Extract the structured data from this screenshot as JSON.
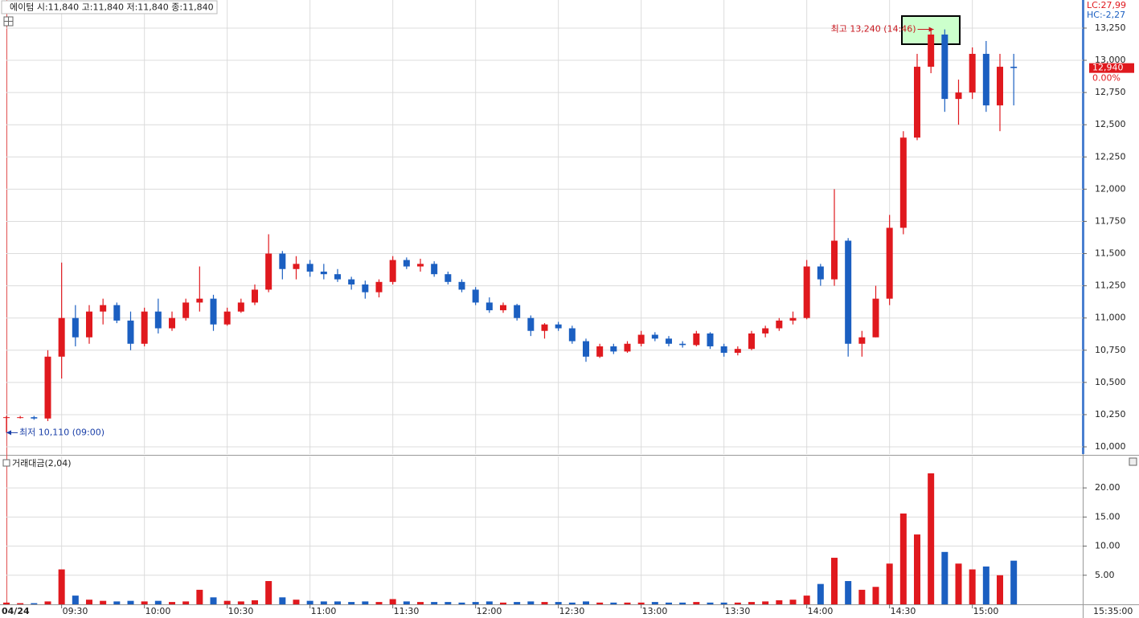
{
  "chart_data": [
    {
      "type": "candlestick",
      "title": "에이텀 시:11,840 고:11,840 저:11,840 종:11,840",
      "indicators": [
        "LC:27,99",
        "HC:-2,27"
      ],
      "up_color": "#e0191e",
      "down_color": "#1b5fc1",
      "x": [
        550,
        555,
        560,
        565,
        570,
        575,
        580,
        585,
        590,
        595,
        600,
        605,
        610,
        615,
        620,
        625,
        630,
        635,
        640,
        645,
        650,
        655,
        660,
        665,
        670,
        675,
        680,
        685,
        690,
        695,
        700,
        705,
        710,
        715,
        720,
        725,
        730,
        735,
        740,
        745,
        750,
        755,
        760,
        765,
        770,
        775,
        780,
        785,
        790,
        795,
        800,
        805,
        810,
        815,
        820,
        825,
        830,
        835,
        840,
        845,
        850,
        855,
        860,
        865,
        870,
        875,
        880,
        885,
        890,
        895,
        900,
        905,
        910,
        915
      ],
      "open": [
        10230,
        10230,
        10230,
        10220,
        10700,
        11000,
        10850,
        11050,
        11100,
        10980,
        10800,
        11050,
        10920,
        11000,
        11120,
        11150,
        10950,
        11050,
        11120,
        11220,
        11500,
        11380,
        11420,
        11360,
        11340,
        11300,
        11260,
        11200,
        11280,
        11450,
        11400,
        11420,
        11340,
        11280,
        11220,
        11120,
        11060,
        11100,
        11000,
        10900,
        10950,
        10920,
        10820,
        10700,
        10780,
        10740,
        10800,
        10870,
        10840,
        10800,
        10790,
        10880,
        10780,
        10730,
        10760,
        10880,
        10920,
        10980,
        11000,
        11400,
        11300,
        11600,
        10800,
        10850,
        11150,
        11700,
        12400,
        12950,
        13200,
        12700,
        12750,
        13050,
        12650,
        12950
      ],
      "high": [
        10240,
        10240,
        10240,
        10750,
        11430,
        11100,
        11100,
        11150,
        11120,
        11050,
        11080,
        11150,
        11050,
        11150,
        11400,
        11180,
        11080,
        11150,
        11260,
        11650,
        11520,
        11480,
        11450,
        11420,
        11380,
        11320,
        11290,
        11300,
        11480,
        11470,
        11460,
        11440,
        11360,
        11300,
        11240,
        11160,
        11120,
        11110,
        11020,
        10960,
        10970,
        10940,
        10840,
        10800,
        10800,
        10820,
        10900,
        10890,
        10860,
        10820,
        10900,
        10890,
        10800,
        10780,
        10900,
        10940,
        11000,
        11050,
        11450,
        11420,
        12000,
        11620,
        10900,
        11250,
        11800,
        12450,
        13050,
        13240,
        13240,
        12850,
        13100,
        13150,
        13050,
        13050
      ],
      "low": [
        10110,
        10220,
        10210,
        10200,
        10530,
        10780,
        10800,
        10950,
        10960,
        10750,
        10780,
        10880,
        10900,
        10980,
        11050,
        10900,
        10940,
        11040,
        11100,
        11200,
        11300,
        11300,
        11320,
        11300,
        11280,
        11220,
        11150,
        11160,
        11260,
        11380,
        11360,
        11320,
        11260,
        11200,
        11100,
        11040,
        11040,
        10980,
        10860,
        10840,
        10900,
        10800,
        10660,
        10690,
        10720,
        10730,
        10780,
        10820,
        10780,
        10770,
        10780,
        10760,
        10700,
        10710,
        10750,
        10850,
        10900,
        10950,
        10990,
        11250,
        11250,
        10700,
        10700,
        10850,
        11100,
        11650,
        12380,
        12900,
        12600,
        12500,
        12700,
        12600,
        12450,
        12650
      ],
      "close": [
        10230,
        10230,
        10220,
        10700,
        11000,
        10850,
        11050,
        11100,
        10980,
        10800,
        11050,
        10920,
        11000,
        11120,
        11150,
        10950,
        11050,
        11120,
        11220,
        11500,
        11380,
        11420,
        11360,
        11340,
        11300,
        11260,
        11200,
        11280,
        11450,
        11400,
        11420,
        11340,
        11280,
        11220,
        11120,
        11060,
        11100,
        11000,
        10900,
        10950,
        10920,
        10820,
        10700,
        10780,
        10740,
        10800,
        10870,
        10840,
        10800,
        10790,
        10880,
        10780,
        10730,
        10760,
        10880,
        10920,
        10980,
        11000,
        11400,
        11300,
        11600,
        10800,
        10850,
        11150,
        11700,
        12400,
        12950,
        13200,
        12700,
        12750,
        13050,
        12650,
        12950,
        12940
      ],
      "xlim": [
        550,
        940
      ],
      "ylim": [
        9944,
        13468
      ],
      "yticks": [
        {
          "value": 10000,
          "label": "10,000"
        },
        {
          "value": 10250,
          "label": "10,250"
        },
        {
          "value": 10500,
          "label": "10,500"
        },
        {
          "value": 10750,
          "label": "10,750"
        },
        {
          "value": 11000,
          "label": "11,000"
        },
        {
          "value": 11250,
          "label": "11,250"
        },
        {
          "value": 11500,
          "label": "11,500"
        },
        {
          "value": 11750,
          "label": "11,750"
        },
        {
          "value": 12000,
          "label": "12,000"
        },
        {
          "value": 12250,
          "label": "12,250"
        },
        {
          "value": 12500,
          "label": "12,500"
        },
        {
          "value": 12750,
          "label": "12,750"
        },
        {
          "value": 13000,
          "label": "13,000"
        },
        {
          "value": 13250,
          "label": "13,250"
        }
      ],
      "grid": true,
      "last_price_label": {
        "value": 12940,
        "label": "12,940"
      },
      "change_label": "0.00%",
      "annotations": [
        {
          "text": "최고 13,240 (14:46)",
          "x": 886,
          "y": 13240,
          "color": "#c8161d"
        },
        {
          "text": "최저 10,110 (09:00)",
          "x": 550,
          "y": 10110,
          "color": "#1a3fa8"
        }
      ]
    },
    {
      "type": "bar",
      "title": "거래대금(2,04)",
      "x": [
        550,
        555,
        560,
        565,
        570,
        575,
        580,
        585,
        590,
        595,
        600,
        605,
        610,
        615,
        620,
        625,
        630,
        635,
        640,
        645,
        650,
        655,
        660,
        665,
        670,
        675,
        680,
        685,
        690,
        695,
        700,
        705,
        710,
        715,
        720,
        725,
        730,
        735,
        740,
        745,
        750,
        755,
        760,
        765,
        770,
        775,
        780,
        785,
        790,
        795,
        800,
        805,
        810,
        815,
        820,
        825,
        830,
        835,
        840,
        845,
        850,
        855,
        860,
        865,
        870,
        875,
        880,
        885,
        890,
        895,
        900,
        905,
        910,
        915
      ],
      "values": [
        0.3,
        0.2,
        0.2,
        0.5,
        6.0,
        1.5,
        0.8,
        0.6,
        0.5,
        0.6,
        0.5,
        0.6,
        0.4,
        0.5,
        2.5,
        1.2,
        0.6,
        0.5,
        0.7,
        4.0,
        1.2,
        0.8,
        0.6,
        0.5,
        0.5,
        0.4,
        0.5,
        0.4,
        0.9,
        0.5,
        0.4,
        0.4,
        0.4,
        0.3,
        0.4,
        0.5,
        0.3,
        0.4,
        0.5,
        0.4,
        0.4,
        0.3,
        0.5,
        0.3,
        0.3,
        0.3,
        0.3,
        0.4,
        0.3,
        0.3,
        0.4,
        0.3,
        0.3,
        0.3,
        0.4,
        0.5,
        0.7,
        0.8,
        1.5,
        3.5,
        8.0,
        4.0,
        2.5,
        3.0,
        7.0,
        15.6,
        12.0,
        22.5,
        9.0,
        7.0,
        6.0,
        6.5,
        5.0,
        7.5
      ],
      "xlim": [
        550,
        940
      ],
      "ylim": [
        0,
        25.4
      ],
      "yticks": [
        {
          "value": 5,
          "label": "5.00"
        },
        {
          "value": 10,
          "label": "10.00"
        },
        {
          "value": 15,
          "label": "15.00"
        },
        {
          "value": 20,
          "label": "20.00"
        }
      ],
      "xticks": [
        {
          "value": 570,
          "label": "09:30"
        },
        {
          "value": 600,
          "label": "10:00"
        },
        {
          "value": 630,
          "label": "10:30"
        },
        {
          "value": 660,
          "label": "11:00"
        },
        {
          "value": 690,
          "label": "11:30"
        },
        {
          "value": 720,
          "label": "12:00"
        },
        {
          "value": 750,
          "label": "12:30"
        },
        {
          "value": 780,
          "label": "13:00"
        },
        {
          "value": 810,
          "label": "13:30"
        },
        {
          "value": 840,
          "label": "14:00"
        },
        {
          "value": 870,
          "label": "14:30"
        },
        {
          "value": 900,
          "label": "15:00"
        }
      ],
      "date_label": "04/24",
      "current_time": "15:35:00"
    }
  ]
}
